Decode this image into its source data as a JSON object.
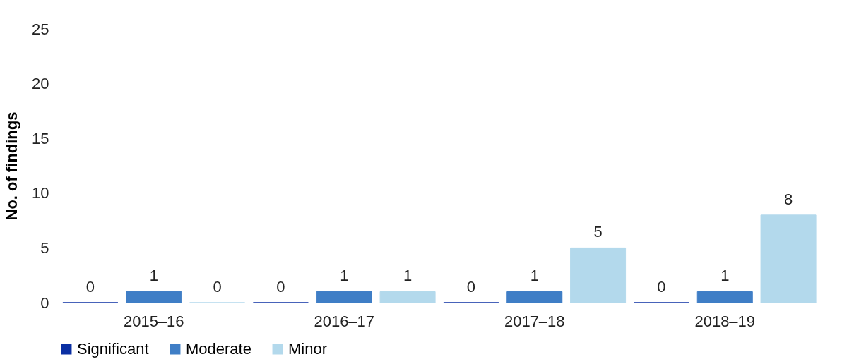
{
  "chart_data": {
    "type": "bar",
    "ylabel": "No. of findings",
    "categories": [
      "2015–16",
      "2016–17",
      "2017–18",
      "2018–19"
    ],
    "series": [
      {
        "name": "Significant",
        "color": "#0a2fa3",
        "values": [
          0,
          0,
          0,
          0
        ]
      },
      {
        "name": "Moderate",
        "color": "#3f7ec6",
        "values": [
          1,
          1,
          1,
          1
        ]
      },
      {
        "name": "Minor",
        "color": "#b3d9ec",
        "values": [
          0,
          1,
          5,
          8
        ]
      }
    ],
    "ylim": [
      0,
      25
    ],
    "yticks": [
      0,
      5,
      10,
      15,
      20,
      25
    ],
    "data_labels": true,
    "legend": "bottom",
    "grid": false
  }
}
